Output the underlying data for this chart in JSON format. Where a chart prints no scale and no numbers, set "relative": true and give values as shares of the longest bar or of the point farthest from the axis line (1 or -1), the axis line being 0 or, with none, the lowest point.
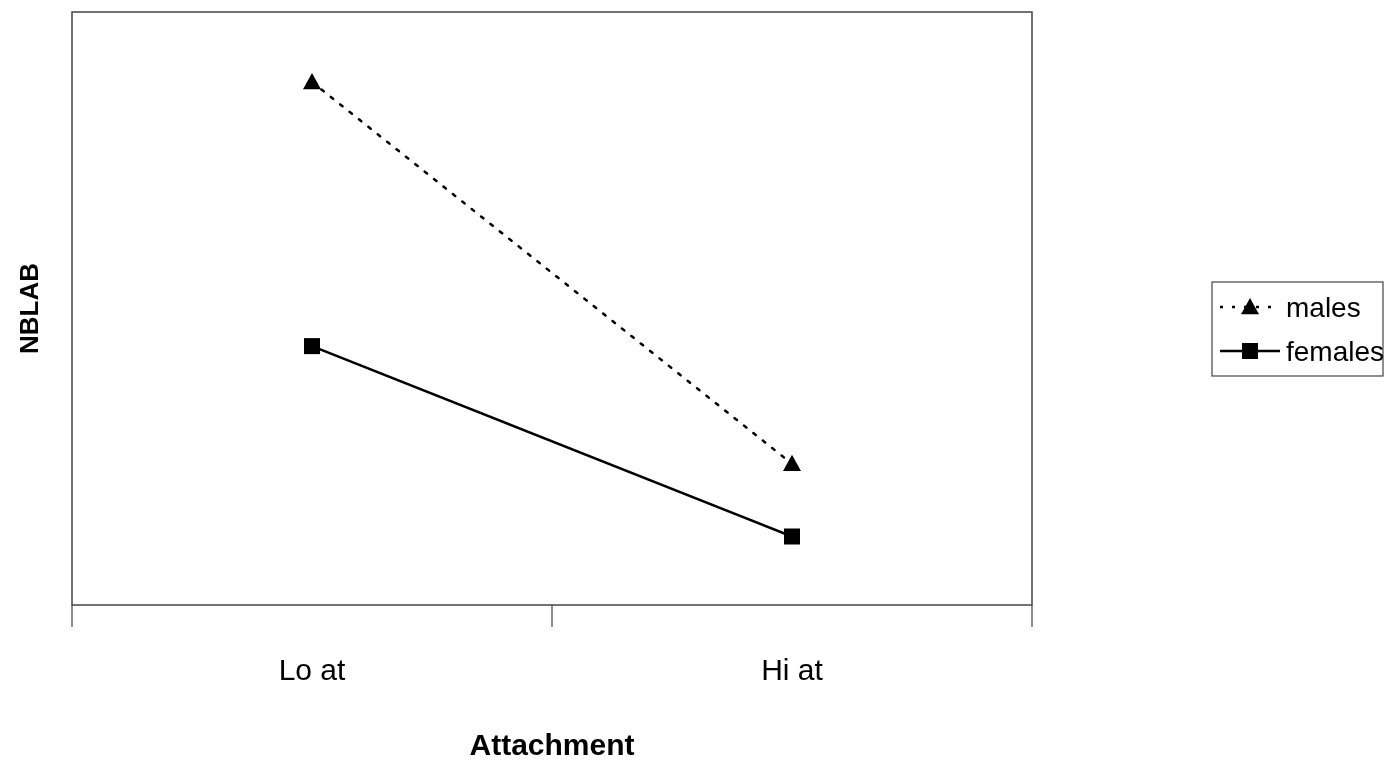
{
  "chart_data": {
    "type": "line",
    "xlabel": "Attachment",
    "ylabel": "NBLAB",
    "categories": [
      "Lo at",
      "Hi at"
    ],
    "relative": true,
    "series": [
      {
        "name": "males",
        "color": "#000000",
        "values": [
          1,
          0.27
        ],
        "marker": "triangle",
        "line_style": "dotted"
      },
      {
        "name": "females",
        "color": "#000000",
        "values": [
          0.495,
          0.131
        ],
        "marker": "square",
        "line_style": "solid"
      }
    ],
    "legend": "right"
  }
}
